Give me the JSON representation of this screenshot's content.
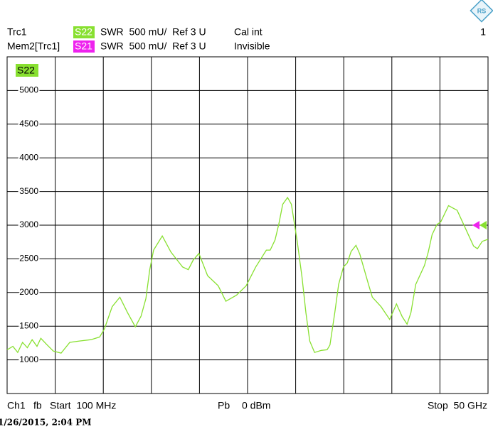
{
  "header": {
    "trace1": "Trc1",
    "trace1_param": "S22",
    "trace1_scale": "SWR  500 mU/  Ref 3 U",
    "trace1_status": "Cal int",
    "channel_number": "1",
    "trace2": "Mem2[Trc1]",
    "trace2_param": "S21",
    "trace2_scale": "SWR  500 mU/  Ref 3 U",
    "trace2_status": "Invisible"
  },
  "footer": {
    "channel": "Ch1",
    "sweep": "fb",
    "start": "Start  100 MHz",
    "power_label": "Pb",
    "power": "0 dBm",
    "stop": "Stop  50 GHz",
    "timestamp": "1/26/2015, 2:04 PM"
  },
  "chart_data": {
    "type": "line",
    "xlim": [
      0.1,
      50
    ],
    "xticks": [
      0.1,
      5.09,
      10.08,
      15.07,
      20.06,
      25.05,
      30.04,
      35.03,
      40.02,
      45.01,
      50
    ],
    "ylim": [
      500,
      5500
    ],
    "yticks": [
      1000,
      1500,
      2000,
      2500,
      3000,
      3500,
      4000,
      4500,
      5000
    ],
    "grid": true,
    "reference_level": 3000,
    "reference_colors": [
      "#ee22ee",
      "#88e030"
    ],
    "series": [
      {
        "name": "S22",
        "color": "#88e030",
        "x": [
          0.1,
          0.7,
          1.2,
          1.7,
          2.2,
          2.7,
          3.2,
          3.6,
          4.2,
          4.9,
          5.7,
          6.6,
          7.6,
          8.8,
          9.7,
          10.2,
          11.0,
          11.8,
          12.6,
          13.4,
          14.0,
          14.5,
          14.9,
          15.3,
          16.2,
          17.1,
          18.3,
          18.9,
          19.4,
          20.0,
          20.9,
          22.0,
          22.8,
          23.9,
          24.9,
          25.9,
          27.0,
          27.4,
          27.9,
          28.3,
          28.7,
          29.2,
          29.6,
          30.2,
          30.7,
          31.1,
          31.5,
          32.0,
          32.7,
          33.3,
          33.6,
          34.1,
          34.5,
          35.0,
          35.4,
          35.8,
          36.3,
          36.7,
          37.6,
          38.0,
          38.9,
          39.8,
          40.5,
          41.1,
          41.6,
          42.0,
          42.5,
          43.4,
          43.8,
          44.2,
          44.7,
          45.1,
          45.9,
          46.8,
          47.6,
          48.5,
          48.9,
          49.4,
          50.0
        ],
        "values": [
          1150,
          1200,
          1110,
          1260,
          1180,
          1300,
          1200,
          1320,
          1230,
          1130,
          1100,
          1260,
          1280,
          1300,
          1340,
          1460,
          1790,
          1930,
          1700,
          1490,
          1650,
          1910,
          2340,
          2630,
          2840,
          2600,
          2380,
          2340,
          2480,
          2580,
          2250,
          2100,
          1870,
          1960,
          2100,
          2380,
          2630,
          2630,
          2780,
          3020,
          3310,
          3410,
          3310,
          2760,
          2230,
          1700,
          1280,
          1110,
          1140,
          1150,
          1220,
          1700,
          2120,
          2380,
          2440,
          2610,
          2700,
          2570,
          2120,
          1930,
          1790,
          1600,
          1830,
          1640,
          1530,
          1700,
          2120,
          2400,
          2600,
          2860,
          3010,
          3050,
          3290,
          3220,
          2970,
          2690,
          2650,
          2760,
          2790
        ]
      }
    ]
  }
}
